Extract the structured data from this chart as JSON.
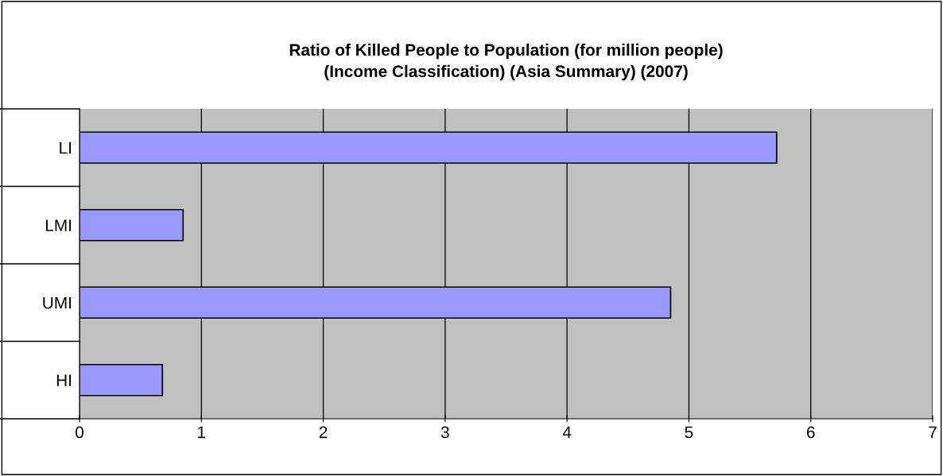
{
  "chart_data": {
    "type": "bar",
    "orientation": "horizontal",
    "title": "Ratio of Killed People to Population (for million people)\n(Income Classification) (Asia Summary) (2007)",
    "categories": [
      "LI",
      "LMI",
      "UMI",
      "HI"
    ],
    "values": [
      5.72,
      0.85,
      4.85,
      0.68
    ],
    "color": "#9999ff",
    "xlim": [
      0,
      7
    ],
    "xticks": [
      0,
      1,
      2,
      3,
      4,
      5,
      6,
      7
    ],
    "grid": "x",
    "legend": false
  }
}
